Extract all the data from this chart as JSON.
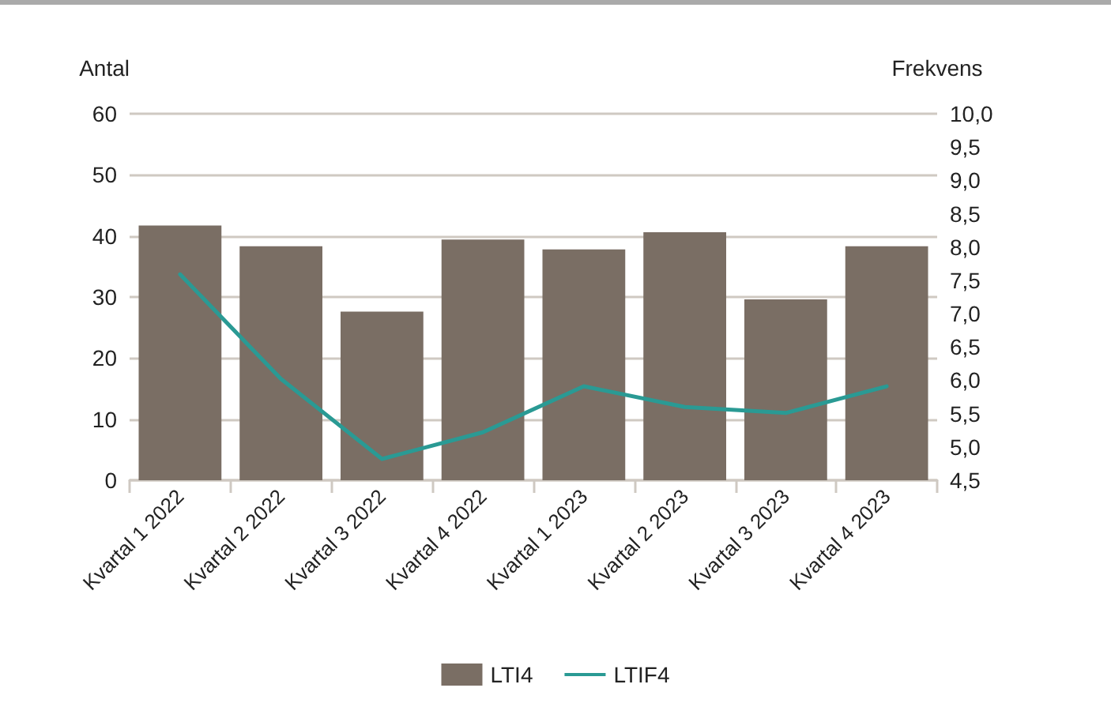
{
  "chart_data": {
    "type": "bar",
    "categories": [
      "Kvartal 1 2022",
      "Kvartal 2 2022",
      "Kvartal 3 2022",
      "Kvartal 4 2022",
      "Kvartal 1 2023",
      "Kvartal 2 2023",
      "Kvartal 3 2023",
      "Kvartal 4 2023"
    ],
    "series": [
      {
        "name": "LTI4",
        "color": "#7a6e64",
        "values": [
          41.7,
          38.3,
          27.6,
          39.4,
          37.8,
          40.6,
          29.6,
          38.3
        ]
      },
      {
        "name": "LTIF4",
        "type": "line",
        "axis": "y2",
        "color": "#2a9a94",
        "values": [
          7.59,
          6.02,
          4.82,
          5.22,
          5.91,
          5.6,
          5.51,
          5.91
        ]
      }
    ],
    "ylabel": "Antal",
    "y2label": "Frekvens",
    "ylim": [
      0,
      60
    ],
    "yticks": [
      0,
      10,
      20,
      30,
      40,
      50,
      60
    ],
    "y2lim": [
      4.5,
      10
    ],
    "y2ticks": [
      {
        "value": 4.5,
        "label": "4,5"
      },
      {
        "value": 5,
        "label": "5,0"
      },
      {
        "value": 5.5,
        "label": "5,5"
      },
      {
        "value": 6,
        "label": "6,0"
      },
      {
        "value": 6.5,
        "label": "6,5"
      },
      {
        "value": 7,
        "label": "7,0"
      },
      {
        "value": 7.5,
        "label": "7,5"
      },
      {
        "value": 8,
        "label": "8,0"
      },
      {
        "value": 8.5,
        "label": "8,5"
      },
      {
        "value": 9,
        "label": "9,0"
      },
      {
        "value": 9.5,
        "label": "9,5"
      },
      {
        "value": 10,
        "label": "10,0"
      }
    ],
    "grid": "y",
    "legend": "bottom",
    "marker": "none",
    "line_style": "solid"
  }
}
